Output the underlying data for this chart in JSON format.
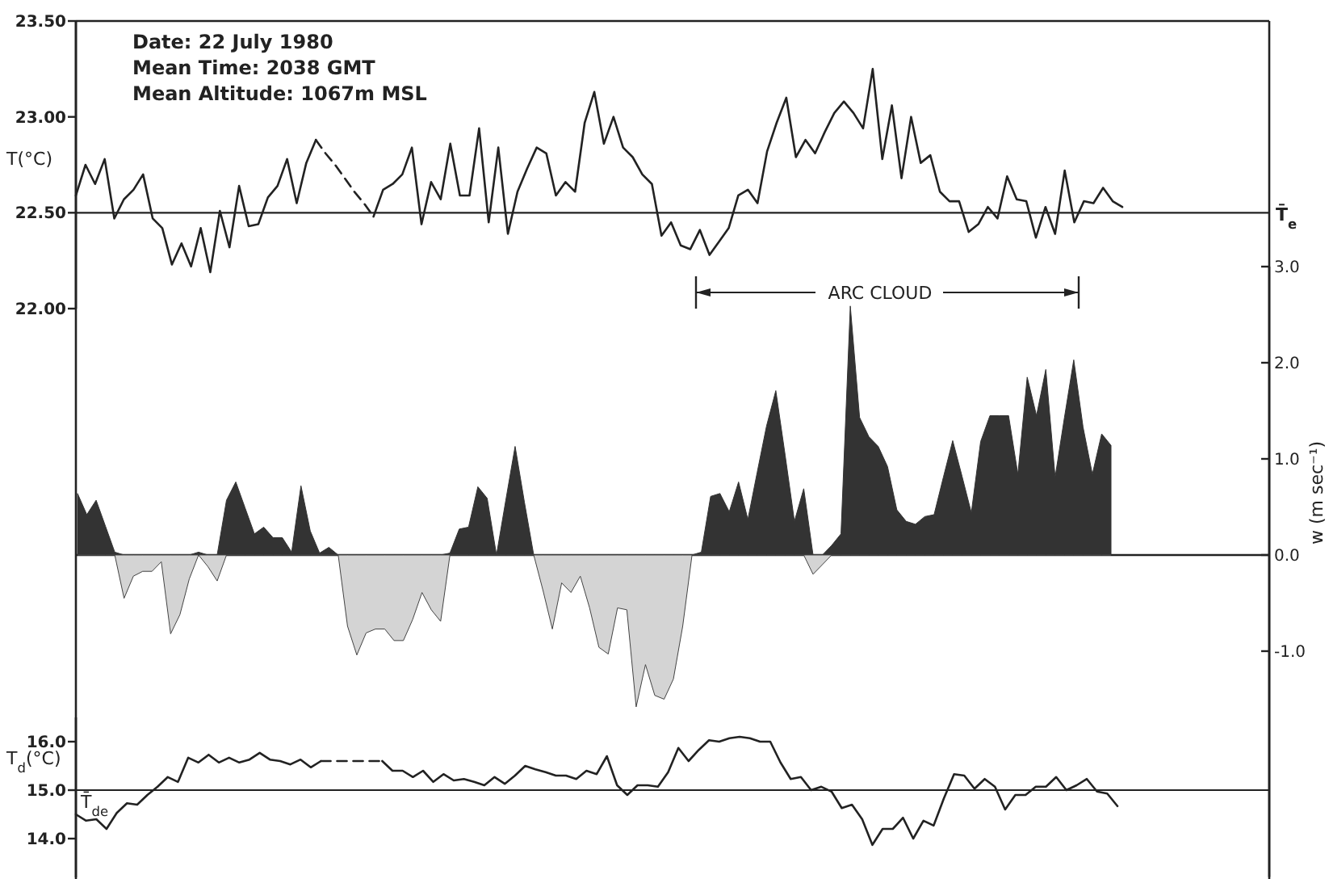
{
  "chart_data": [
    {
      "type": "line",
      "ylabel": "T(°C)",
      "ylim": [
        22.0,
        23.5
      ],
      "yticks": [
        {
          "value": 23.5,
          "label": "23.50"
        },
        {
          "value": 23.0,
          "label": "23.00"
        },
        {
          "value": 22.5,
          "label": "22.50"
        },
        {
          "value": 22.0,
          "label": "22.00"
        }
      ],
      "categories": [
        null,
        null,
        null,
        null,
        null,
        null,
        null,
        null,
        null,
        null,
        null,
        null,
        null,
        null,
        null,
        null,
        null,
        null,
        null,
        null,
        null,
        null,
        null,
        null,
        null,
        null,
        null,
        null,
        null,
        null,
        null,
        null,
        null,
        null,
        null,
        null,
        null,
        null,
        null,
        null,
        null,
        null,
        null,
        null,
        null,
        null,
        null,
        null,
        null,
        null,
        null,
        null,
        null,
        null,
        null,
        null,
        null,
        null,
        null,
        null,
        null,
        null,
        null,
        null,
        null,
        null,
        null,
        null,
        null,
        null,
        null,
        null,
        null,
        null,
        null,
        null,
        null,
        null,
        null,
        null,
        null,
        null,
        null,
        null,
        null,
        null,
        null,
        null,
        null,
        null,
        null,
        null,
        null,
        null,
        null,
        null,
        null,
        null,
        null,
        null,
        null,
        null,
        null,
        null,
        null,
        null,
        null,
        null,
        null,
        null
      ],
      "series": [
        {
          "color": "#222222",
          "values": [
            22.59,
            22.75,
            22.65,
            22.78,
            22.47,
            22.57,
            22.62,
            22.7,
            22.47,
            22.42,
            22.23,
            22.34,
            22.22,
            22.42,
            22.19,
            22.51,
            22.32,
            22.64,
            22.43,
            22.44,
            22.58,
            22.64,
            22.78,
            22.55,
            22.76,
            22.88,
            null,
            null,
            null,
            null,
            null,
            null,
            null,
            null,
            null,
            null,
            null,
            null,
            null,
            null,
            null,
            null,
            null,
            null,
            null,
            null,
            null,
            null,
            null,
            null,
            null,
            null,
            null,
            null,
            null,
            null,
            null,
            null,
            null,
            null,
            null,
            null,
            null,
            null,
            null,
            null,
            null,
            null,
            null,
            null,
            null,
            null,
            null,
            null,
            null,
            null,
            null,
            null,
            null,
            null,
            null,
            null,
            null,
            null,
            null,
            null,
            null,
            null,
            null,
            null,
            null,
            null,
            null,
            null,
            null,
            null,
            null,
            null,
            null,
            null,
            null,
            null,
            null,
            null,
            null,
            null,
            null,
            null,
            null,
            null
          ]
        },
        {
          "color": "#222222",
          "values": [
            null,
            null,
            null,
            null,
            null,
            null,
            null,
            null,
            null,
            null,
            null,
            null,
            null,
            null,
            null,
            null,
            null,
            null,
            null,
            null,
            null,
            null,
            null,
            null,
            null,
            null,
            null,
            null,
            null,
            null,
            null,
            22.48,
            22.62,
            22.65,
            22.7,
            22.84,
            22.44,
            22.66,
            22.57,
            22.86,
            22.59,
            22.59,
            22.94,
            22.45,
            22.84,
            22.39,
            22.61,
            22.73,
            22.84,
            22.81,
            22.59,
            22.66,
            22.61,
            22.97,
            23.13,
            22.86,
            23.0,
            22.84,
            22.79,
            22.7,
            22.65,
            22.38,
            22.45,
            22.33,
            22.31,
            22.41,
            22.28,
            22.35,
            22.42,
            22.59,
            22.62,
            22.55,
            22.82,
            22.97,
            23.1,
            22.79,
            22.88,
            22.81,
            22.92,
            23.02,
            23.08,
            23.02,
            22.94,
            23.25,
            22.78,
            23.06,
            22.68,
            23.0,
            22.76,
            22.8,
            22.61,
            22.56,
            22.56,
            22.4,
            22.44,
            22.53,
            22.47,
            22.69,
            22.57,
            22.56,
            22.37,
            22.53,
            22.39,
            22.72,
            22.45,
            22.56,
            22.55,
            22.63,
            22.56,
            22.53
          ]
        },
        {
          "color": "#222222",
          "line_style": "dashed",
          "values": [
            null,
            null,
            null,
            null,
            null,
            null,
            null,
            null,
            null,
            null,
            null,
            null,
            null,
            null,
            null,
            null,
            null,
            null,
            null,
            null,
            null,
            null,
            null,
            null,
            null,
            22.88,
            22.81,
            22.75,
            22.68,
            22.61,
            22.55,
            22.48,
            null,
            null,
            null,
            null,
            null,
            null,
            null,
            null,
            null,
            null,
            null,
            null,
            null,
            null,
            null,
            null,
            null,
            null,
            null,
            null,
            null,
            null,
            null,
            null,
            null,
            null,
            null,
            null,
            null,
            null,
            null,
            null,
            null,
            null,
            null,
            null,
            null,
            null,
            null,
            null,
            null,
            null,
            null,
            null,
            null,
            null,
            null,
            null,
            null,
            null,
            null,
            null,
            null,
            null,
            null,
            null,
            null,
            null,
            null,
            null,
            null,
            null,
            null,
            null,
            null,
            null,
            null,
            null,
            null,
            null,
            null,
            null,
            null,
            null,
            null,
            null,
            null,
            null
          ]
        }
      ],
      "ref_lines": [
        {
          "axis": "y",
          "value": 22.5,
          "label": "T̄$_{e}$"
        }
      ],
      "annotations": [
        "Date: 22 July 1980",
        "Mean Time: 2038 GMT",
        "Mean Altitude: 1067m MSL"
      ]
    },
    {
      "type": "area",
      "ylabel": "w (m sec⁻¹)",
      "ylim": [
        -3.35,
        3.0
      ],
      "yticks": [
        {
          "value": 3.0,
          "label": "3.0"
        },
        {
          "value": 2.0,
          "label": "2.0"
        },
        {
          "value": 1.0,
          "label": "1.0"
        },
        {
          "value": 0.0,
          "label": "0.0"
        },
        {
          "value": -1.0,
          "label": "-1.0"
        }
      ],
      "categories": [
        null,
        null,
        null,
        null,
        null,
        null,
        null,
        null,
        null,
        null,
        null,
        null,
        null,
        null,
        null,
        null,
        null,
        null,
        null,
        null,
        null,
        null,
        null,
        null,
        null,
        null,
        null,
        null,
        null,
        null,
        null,
        null,
        null,
        null,
        null,
        null,
        null,
        null,
        null,
        null,
        null,
        null,
        null,
        null,
        null,
        null,
        null,
        null,
        null,
        null,
        null,
        null,
        null,
        null,
        null,
        null,
        null,
        null,
        null,
        null,
        null,
        null,
        null,
        null,
        null,
        null,
        null,
        null,
        null,
        null,
        null,
        null,
        null,
        null,
        null,
        null,
        null,
        null,
        null,
        null,
        null,
        null,
        null,
        null,
        null,
        null,
        null,
        null,
        null,
        null,
        null,
        null,
        null,
        null,
        null,
        null,
        null,
        null,
        null,
        null,
        null,
        null,
        null,
        null,
        null,
        null,
        null,
        null,
        null,
        null,
        null,
        null
      ],
      "series": [
        {
          "color": "#333333",
          "values": [
            0.64,
            0.42,
            0.57,
            0.3,
            0.03,
            0,
            0,
            0,
            0,
            0,
            0,
            0,
            0,
            0.03,
            0,
            0,
            0.57,
            0.76,
            0.49,
            0.22,
            0.29,
            0.18,
            0.18,
            0.03,
            0.72,
            0.25,
            0.02,
            0.08,
            0,
            0,
            0,
            0,
            0,
            0,
            0,
            0,
            0,
            0,
            0,
            0,
            0.02,
            0.27,
            0.29,
            0.71,
            0.59,
            0,
            0.57,
            1.13,
            0.55,
            0,
            0,
            0,
            0,
            0,
            0,
            0,
            0,
            0,
            0,
            0,
            0,
            0,
            0,
            0,
            0,
            0,
            0,
            0.03,
            0.61,
            0.64,
            0.45,
            0.76,
            0.37,
            0.86,
            1.34,
            1.71,
            1.04,
            0.35,
            0.69,
            0,
            0,
            0.1,
            0.22,
            2.59,
            1.43,
            1.23,
            1.13,
            0.92,
            0.47,
            0.35,
            0.32,
            0.4,
            0.42,
            0.81,
            1.19,
            0.82,
            0.44,
            1.18,
            1.45,
            1.45,
            1.45,
            0.84,
            1.85,
            1.45,
            1.93,
            0.81,
            1.43,
            2.03,
            1.33,
            0.84,
            1.26,
            1.14
          ]
        },
        {
          "color": "#d4d4d4",
          "values": [
            0,
            0,
            0,
            0,
            0,
            -0.45,
            -0.22,
            -0.17,
            -0.17,
            -0.07,
            -0.82,
            -0.62,
            -0.25,
            0,
            -0.12,
            -0.27,
            0,
            0,
            0,
            0,
            0,
            0,
            0,
            0,
            0,
            0,
            0,
            0,
            0,
            -0.74,
            -1.04,
            -0.81,
            -0.77,
            -0.77,
            -0.89,
            -0.89,
            -0.67,
            -0.39,
            -0.57,
            -0.69,
            0,
            0,
            0,
            0,
            0,
            0,
            0,
            0,
            0,
            0,
            -0.37,
            -0.77,
            -0.29,
            -0.39,
            -0.22,
            -0.55,
            -0.96,
            -1.03,
            -0.55,
            -0.57,
            -1.58,
            -1.14,
            -1.46,
            -1.5,
            -1.29,
            -0.74,
            0,
            0,
            0,
            0,
            0,
            0,
            0,
            0,
            0,
            0,
            0,
            0,
            0,
            -0.2,
            -0.1,
            0,
            0,
            0,
            0,
            0,
            0,
            0,
            0,
            0,
            0,
            0,
            0,
            0,
            0,
            0,
            0,
            0,
            0,
            0,
            0,
            0,
            0,
            0,
            0,
            0,
            0,
            0,
            0,
            0,
            0,
            0
          ]
        }
      ],
      "annotations": [
        "ARC CLOUD"
      ]
    },
    {
      "type": "line",
      "ylabel": "T$_{d}$(°C)",
      "ylim": [
        13.2,
        16.5
      ],
      "yticks": [
        {
          "value": 16.0,
          "label": "16.0"
        },
        {
          "value": 15.0,
          "label": "15.0"
        },
        {
          "value": 14.0,
          "label": "14.0"
        }
      ],
      "categories": [
        null,
        null,
        null,
        null,
        null,
        null,
        null,
        null,
        null,
        null,
        null,
        null,
        null,
        null,
        null,
        null,
        null,
        null,
        null,
        null,
        null,
        null,
        null,
        null,
        null,
        null,
        null,
        null,
        null,
        null,
        null,
        null,
        null,
        null,
        null,
        null,
        null,
        null,
        null,
        null,
        null,
        null,
        null,
        null,
        null,
        null,
        null,
        null,
        null,
        null,
        null,
        null,
        null,
        null,
        null,
        null,
        null,
        null,
        null,
        null,
        null,
        null,
        null,
        null,
        null,
        null,
        null,
        null,
        null,
        null,
        null,
        null,
        null,
        null,
        null,
        null,
        null,
        null,
        null,
        null,
        null,
        null,
        null,
        null,
        null,
        null,
        null,
        null,
        null,
        null,
        null,
        null,
        null,
        null,
        null,
        null,
        null,
        null,
        null,
        null,
        null,
        null,
        null
      ],
      "series": [
        {
          "color": "#222222",
          "values": [
            14.5,
            14.37,
            14.4,
            14.2,
            14.53,
            14.73,
            14.7,
            14.9,
            15.07,
            15.27,
            15.17,
            15.67,
            15.57,
            15.73,
            15.57,
            15.67,
            15.57,
            15.63,
            15.77,
            15.63,
            15.6,
            15.53,
            15.63,
            15.47,
            15.6,
            null,
            null,
            null,
            null,
            null,
            null,
            null,
            null,
            null,
            null,
            null,
            null,
            null,
            null,
            null,
            null,
            null,
            null,
            null,
            null,
            null,
            null,
            null,
            null,
            null,
            null,
            null,
            null,
            null,
            null,
            null,
            null,
            null,
            null,
            null,
            null,
            null,
            null,
            null,
            null,
            null,
            null,
            null,
            null,
            null,
            null,
            null,
            null,
            null,
            null,
            null,
            null,
            null,
            null,
            null,
            null,
            null,
            null,
            null,
            null,
            null,
            null,
            null,
            null,
            null,
            null,
            null,
            null,
            null,
            null,
            null,
            null,
            null,
            null,
            null,
            null,
            null,
            null
          ]
        },
        {
          "color": "#222222",
          "values": [
            null,
            null,
            null,
            null,
            null,
            null,
            null,
            null,
            null,
            null,
            null,
            null,
            null,
            null,
            null,
            null,
            null,
            null,
            null,
            null,
            null,
            null,
            null,
            null,
            null,
            null,
            null,
            null,
            null,
            null,
            15.6,
            15.4,
            15.4,
            15.27,
            15.4,
            15.17,
            15.33,
            15.2,
            15.23,
            15.17,
            15.1,
            15.27,
            15.13,
            15.3,
            15.5,
            15.43,
            15.37,
            15.3,
            15.3,
            15.23,
            15.4,
            15.33,
            15.7,
            15.1,
            14.9,
            15.1,
            15.1,
            15.07,
            15.37,
            15.87,
            15.6,
            15.83,
            16.03,
            16.0,
            16.07,
            16.1,
            16.07,
            16.0,
            16.0,
            15.57,
            15.23,
            15.27,
            15.0,
            15.07,
            14.97,
            14.63,
            14.7,
            14.4,
            13.87,
            14.2,
            14.2,
            14.43,
            14.0,
            14.37,
            14.27,
            14.83,
            15.33,
            15.3,
            15.03,
            15.23,
            15.07,
            14.6,
            14.9,
            14.9,
            15.07,
            15.07,
            15.27,
            15.0,
            15.1,
            15.23,
            14.97,
            14.93,
            14.67
          ]
        },
        {
          "color": "#222222",
          "line_style": "dashed",
          "values": [
            null,
            null,
            null,
            null,
            null,
            null,
            null,
            null,
            null,
            null,
            null,
            null,
            null,
            null,
            null,
            null,
            null,
            null,
            null,
            null,
            null,
            null,
            null,
            null,
            15.6,
            15.6,
            15.6,
            15.6,
            15.6,
            15.6,
            15.6,
            null,
            null,
            null,
            null,
            null,
            null,
            null,
            null,
            null,
            null,
            null,
            null,
            null,
            null,
            null,
            null,
            null,
            null,
            null,
            null,
            null,
            null,
            null,
            null,
            null,
            null,
            null,
            null,
            null,
            null,
            null,
            null,
            null,
            null,
            null,
            null,
            null,
            null,
            null,
            null,
            null,
            null,
            null,
            null,
            null,
            null,
            null,
            null,
            null,
            null,
            null,
            null,
            null,
            null,
            null,
            null,
            null,
            null,
            null,
            null,
            null,
            null,
            null,
            null,
            null,
            null,
            null,
            null,
            null,
            null,
            null,
            null
          ]
        }
      ],
      "ref_lines": [
        {
          "axis": "y",
          "value": 15.0,
          "label": "T̄$_{de}$"
        }
      ]
    }
  ]
}
